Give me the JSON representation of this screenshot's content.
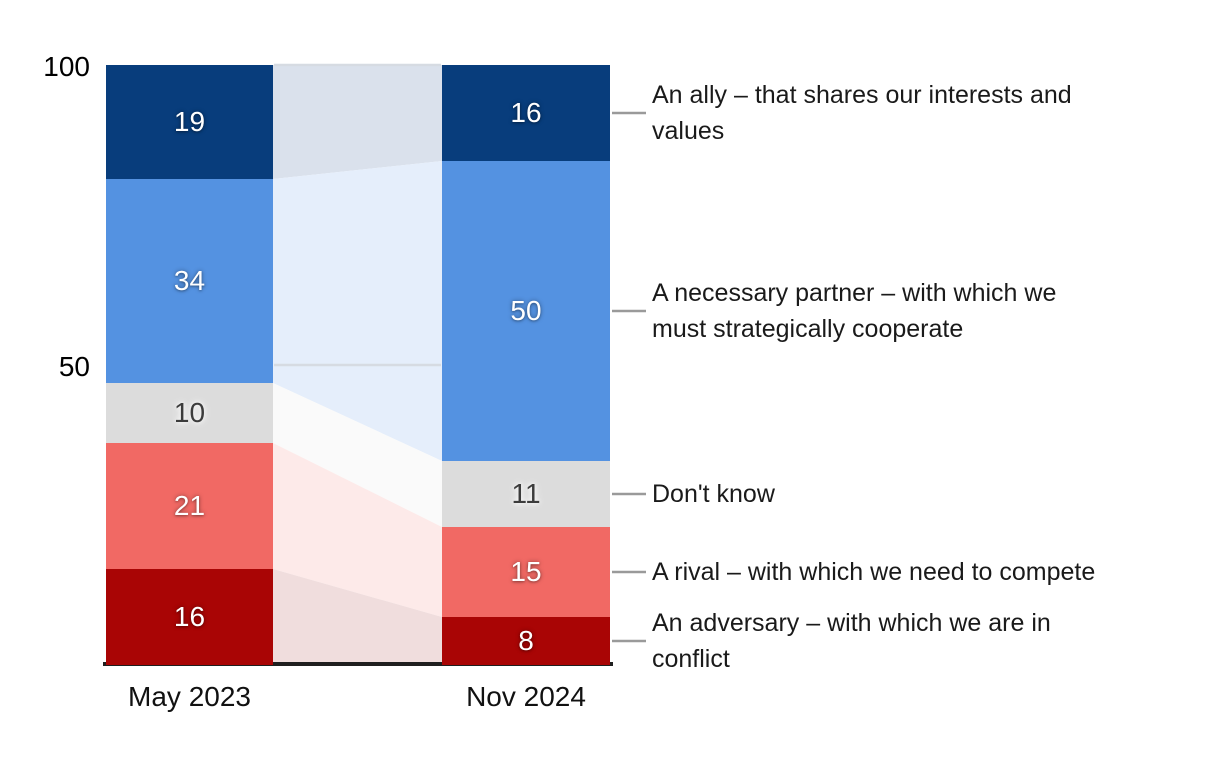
{
  "figure": {
    "background": "#ffffff",
    "y_axis_tick_labels": [
      "100",
      "50"
    ],
    "x_axis_labels": [
      "May 2023",
      "Nov 2024"
    ]
  },
  "chart_data": {
    "type": "bar",
    "subtype": "stacked-columns-with-flow-bands",
    "stacked": true,
    "categories": [
      "May 2023",
      "Nov 2024"
    ],
    "series": [
      {
        "name": "An ally – that shares our interests and values",
        "label_display": "An ally – that shares our interests and\nvalues",
        "values": [
          19,
          16
        ],
        "color": "#083d7c",
        "flow_color": "#dae1ec",
        "value_text": "light"
      },
      {
        "name": "A necessary partner – with which we must strategically cooperate",
        "label_display": "A necessary partner – with which we\nmust strategically cooperate",
        "values": [
          34,
          50
        ],
        "color": "#5492e1",
        "flow_color": "#e5eefb",
        "value_text": "light"
      },
      {
        "name": "Don't know",
        "label_display": "Don't know",
        "values": [
          10,
          11
        ],
        "color": "#dcdcdc",
        "flow_color": "#fafafa",
        "value_text": "dark"
      },
      {
        "name": "A rival – with which we need to compete",
        "label_display": "A rival – with which we need to compete",
        "values": [
          21,
          15
        ],
        "color": "#f16964",
        "flow_color": "#fdeae9",
        "value_text": "light"
      },
      {
        "name": "An adversary – with which we are in conflict",
        "label_display": "An adversary – with which we are in\nconflict",
        "values": [
          16,
          8
        ],
        "color": "#a90505",
        "flow_color": "#f0dddd",
        "value_text": "light"
      }
    ],
    "ylim": [
      0,
      100
    ],
    "yticks": [
      100,
      50
    ],
    "grid": "partial (gridlines at 50 and 100 visible between columns)",
    "legend_position": "right, connected with leader lines to Nov 2024 column",
    "value_labels_shown": true
  },
  "style": {
    "gridline_color": "#d6dbe2",
    "connector_color": "#9a9a9a",
    "baseline_color": "#1f1f1f",
    "tick_text_color": "#000000",
    "label_text_color": "#1a1a1a"
  }
}
